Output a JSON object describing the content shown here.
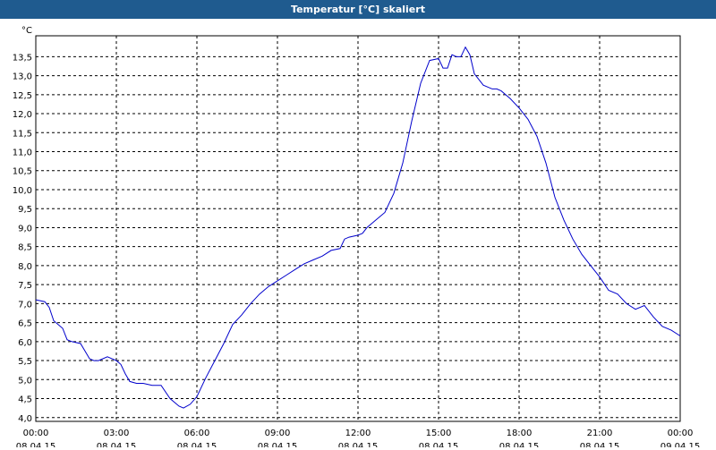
{
  "window": {
    "title": "Temperatur [°C] skaliert"
  },
  "colors": {
    "titlebar": "#1f5b8f",
    "line": "#0000cc",
    "grid": "#000000"
  },
  "chart_data": {
    "type": "line",
    "title": "Temperatur [°C] skaliert",
    "ylabel": "°C",
    "xlabel": "",
    "grid": true,
    "grid_style": "dashed",
    "ylim": [
      3.9,
      14.05
    ],
    "xlim_hours": [
      0,
      24
    ],
    "y_ticks": [
      "4,0",
      "4,5",
      "5,0",
      "5,5",
      "6,0",
      "6,5",
      "7,0",
      "7,5",
      "8,0",
      "8,5",
      "9,0",
      "9,5",
      "10,0",
      "10,5",
      "11,0",
      "11,5",
      "12,0",
      "12,5",
      "13,0",
      "13,5"
    ],
    "x_ticks": [
      {
        "time": "00:00",
        "date": "08.04.15"
      },
      {
        "time": "03:00",
        "date": "08.04.15"
      },
      {
        "time": "06:00",
        "date": "08.04.15"
      },
      {
        "time": "09:00",
        "date": "08.04.15"
      },
      {
        "time": "12:00",
        "date": "08.04.15"
      },
      {
        "time": "15:00",
        "date": "08.04.15"
      },
      {
        "time": "18:00",
        "date": "08.04.15"
      },
      {
        "time": "21:00",
        "date": "08.04.15"
      },
      {
        "time": "00:00",
        "date": "09.04.15"
      }
    ],
    "series": [
      {
        "x": [
          "00:00",
          "00:20",
          "00:30",
          "00:40",
          "01:00",
          "01:10",
          "01:20",
          "01:40",
          "02:00",
          "02:10",
          "02:20",
          "02:40",
          "02:50",
          "03:00",
          "03:10",
          "03:20",
          "03:30",
          "03:45",
          "04:00",
          "04:20",
          "04:40",
          "05:00",
          "05:20",
          "05:30",
          "05:45",
          "06:00",
          "06:20",
          "06:40",
          "07:00",
          "07:20",
          "07:40",
          "08:00",
          "08:20",
          "08:40",
          "09:00",
          "09:20",
          "09:40",
          "10:00",
          "10:20",
          "10:40",
          "11:00",
          "11:20",
          "11:30",
          "11:40",
          "12:00",
          "12:10",
          "12:20",
          "12:40",
          "13:00",
          "13:20",
          "13:40",
          "14:00",
          "14:20",
          "14:40",
          "15:00",
          "15:10",
          "15:20",
          "15:30",
          "15:40",
          "15:50",
          "16:00",
          "16:10",
          "16:20",
          "16:30",
          "16:40",
          "17:00",
          "17:10",
          "17:20",
          "17:40",
          "18:00",
          "18:20",
          "18:40",
          "19:00",
          "19:20",
          "19:40",
          "20:00",
          "20:20",
          "20:40",
          "21:00",
          "21:20",
          "21:40",
          "22:00",
          "22:20",
          "22:40",
          "23:00",
          "23:20",
          "23:40",
          "24:00"
        ],
        "y": [
          7.1,
          7.05,
          6.9,
          6.55,
          6.35,
          6.05,
          6.0,
          5.95,
          5.55,
          5.5,
          5.5,
          5.6,
          5.55,
          5.5,
          5.4,
          5.15,
          4.95,
          4.9,
          4.9,
          4.85,
          4.85,
          4.5,
          4.3,
          4.25,
          4.35,
          4.55,
          5.05,
          5.5,
          5.95,
          6.45,
          6.7,
          7.0,
          7.25,
          7.45,
          7.6,
          7.75,
          7.9,
          8.05,
          8.15,
          8.25,
          8.4,
          8.45,
          8.7,
          8.75,
          8.8,
          8.85,
          9.0,
          9.2,
          9.4,
          9.9,
          10.7,
          11.8,
          12.8,
          13.4,
          13.45,
          13.2,
          13.2,
          13.55,
          13.5,
          13.5,
          13.75,
          13.55,
          13.05,
          12.9,
          12.75,
          12.65,
          12.65,
          12.6,
          12.4,
          12.15,
          11.85,
          11.4,
          10.7,
          9.8,
          9.2,
          8.7,
          8.3,
          8.0,
          7.7,
          7.35,
          7.25,
          7.0,
          6.85,
          6.95,
          6.65,
          6.4,
          6.3,
          6.15
        ]
      }
    ]
  }
}
